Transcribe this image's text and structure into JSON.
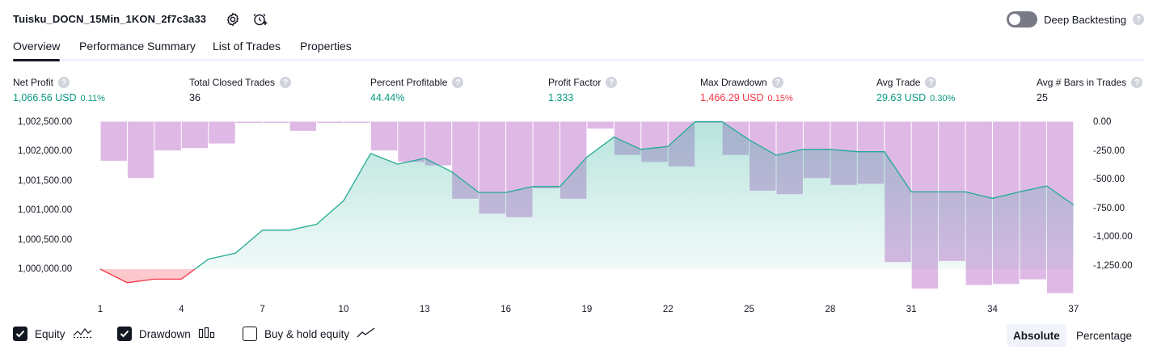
{
  "header": {
    "strategy_name": "Tuisku_DOCN_15Min_1KON_2f7c3a33",
    "deep_backtesting_label": "Deep Backtesting",
    "deep_backtesting_enabled": false,
    "help_glyph": "?"
  },
  "tabs": [
    {
      "label": "Overview",
      "active": true
    },
    {
      "label": "Performance Summary",
      "active": false
    },
    {
      "label": "List of Trades",
      "active": false
    },
    {
      "label": "Properties",
      "active": false
    }
  ],
  "metrics": [
    {
      "label": "Net Profit",
      "value": "1,066.56 USD",
      "pct": "0.11%",
      "tone": "green"
    },
    {
      "label": "Total Closed Trades",
      "value": "36",
      "pct": "",
      "tone": "neutral"
    },
    {
      "label": "Percent Profitable",
      "value": "44.44%",
      "pct": "",
      "tone": "green"
    },
    {
      "label": "Profit Factor",
      "value": "1.333",
      "pct": "",
      "tone": "green"
    },
    {
      "label": "Max Drawdown",
      "value": "1,466.29 USD",
      "pct": "0.15%",
      "tone": "red"
    },
    {
      "label": "Avg Trade",
      "value": "29.63 USD",
      "pct": "0.30%",
      "tone": "green"
    },
    {
      "label": "Avg # Bars in Trades",
      "value": "25",
      "pct": "",
      "tone": "neutral"
    }
  ],
  "chart_data": {
    "type": "area",
    "x_ticks": [
      "1",
      "4",
      "7",
      "10",
      "13",
      "16",
      "19",
      "22",
      "25",
      "28",
      "31",
      "34",
      "37"
    ],
    "y_left_ticks": [
      "1,002,500.00",
      "1,002,000.00",
      "1,001,500.00",
      "1,001,000.00",
      "1,000,500.00",
      "1,000,000.00"
    ],
    "y_left_range": [
      999500,
      1002600
    ],
    "y_right_ticks": [
      "0.00",
      "-250.00",
      "-500.00",
      "-750.00",
      "-1,000.00",
      "-1,250.00"
    ],
    "y_right_range": [
      -1500,
      0
    ],
    "grid": false,
    "colors": {
      "equity_up": "#22ab94",
      "equity_down": "#f23645",
      "drawdown": "#ce93d8"
    },
    "series": [
      {
        "name": "Equity",
        "x": [
          1,
          2,
          3,
          4,
          5,
          6,
          7,
          8,
          9,
          10,
          11,
          12,
          13,
          14,
          15,
          16,
          17,
          18,
          19,
          20,
          21,
          22,
          23,
          24,
          25,
          26,
          27,
          28,
          29,
          30,
          31,
          32,
          33,
          34,
          35,
          36,
          37
        ],
        "values": [
          1000000,
          999770,
          999830,
          999830,
          1000170,
          1000270,
          1000660,
          1000660,
          1000760,
          1001160,
          1001960,
          1001780,
          1001880,
          1001650,
          1001300,
          1001300,
          1001400,
          1001400,
          1001900,
          1002240,
          1002030,
          1002080,
          1002500,
          1002500,
          1002190,
          1001930,
          1002030,
          1002030,
          1001990,
          1001990,
          1001310,
          1001310,
          1001310,
          1001200,
          1001310,
          1001410,
          1001090
        ]
      },
      {
        "name": "Drawdown",
        "x": [
          1,
          2,
          3,
          4,
          5,
          6,
          7,
          8,
          9,
          10,
          11,
          12,
          13,
          14,
          15,
          16,
          17,
          18,
          19,
          20,
          21,
          22,
          23,
          24,
          25,
          26,
          27,
          28,
          29,
          30,
          31,
          32,
          33,
          34,
          35,
          36,
          37
        ],
        "values": [
          0,
          -340,
          -490,
          -250,
          -230,
          -190,
          0,
          -10,
          -80,
          0,
          -10,
          -250,
          -350,
          -380,
          -670,
          -800,
          -830,
          -580,
          -670,
          -60,
          -290,
          -350,
          -390,
          0,
          -290,
          -600,
          -630,
          -490,
          -550,
          -540,
          -1220,
          -1450,
          -1210,
          -1420,
          -1410,
          -1370,
          -1490
        ]
      }
    ]
  },
  "legend": [
    {
      "label": "Equity",
      "checked": true,
      "icon": "equity-line-icon"
    },
    {
      "label": "Drawdown",
      "checked": true,
      "icon": "drawdown-bars-icon"
    },
    {
      "label": "Buy & hold equity",
      "checked": false,
      "icon": "buy-hold-line-icon"
    }
  ],
  "scale_toggle": {
    "absolute_label": "Absolute",
    "percentage_label": "Percentage",
    "selected": "Absolute"
  }
}
